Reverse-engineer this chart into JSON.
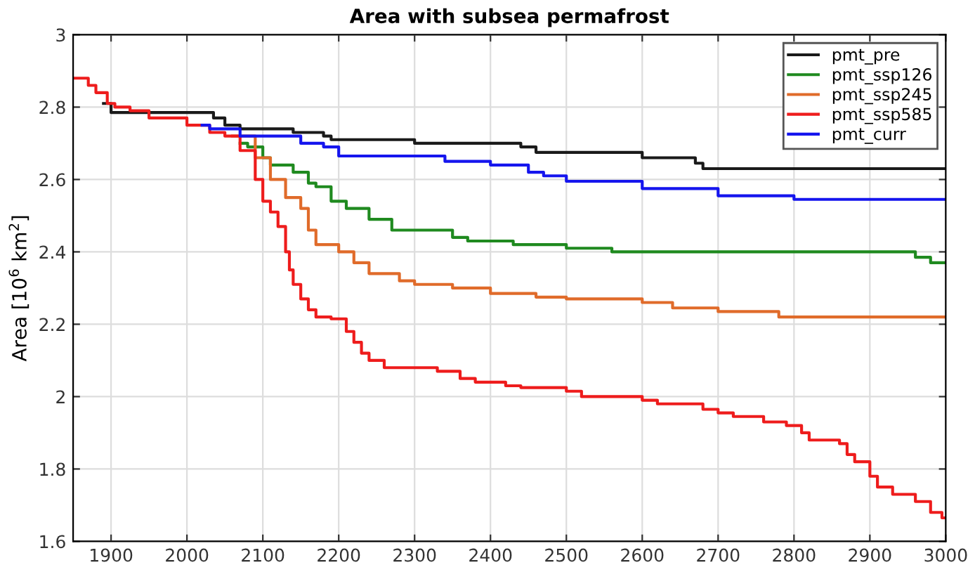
{
  "chart_data": {
    "type": "step",
    "title": "Area with subsea permafrost",
    "ylabel": "Area [10$^{6}$ km$^{2}$]",
    "xlim": [
      1850,
      3000
    ],
    "xticks": [
      1900,
      2000,
      2100,
      2200,
      2300,
      2400,
      2500,
      2600,
      2700,
      2800,
      2900,
      3000
    ],
    "ylim": [
      1.6,
      3
    ],
    "yticks": [
      1.6,
      1.8,
      2,
      2.2,
      2.4,
      2.6,
      2.8,
      3
    ],
    "grid": true,
    "legend": "top right",
    "series": [
      {
        "name": "pmt_pre",
        "color": "#1a1a1a",
        "x": [
          1890,
          1900,
          2035,
          2050,
          2070,
          2140,
          2180,
          2190,
          2300,
          2440,
          2460,
          2600,
          2670,
          2680,
          3000
        ],
        "values": [
          2.81,
          2.785,
          2.77,
          2.75,
          2.74,
          2.73,
          2.72,
          2.71,
          2.7,
          2.69,
          2.675,
          2.66,
          2.645,
          2.63,
          2.63
        ]
      },
      {
        "name": "pmt_ssp126",
        "color": "#1f8a1f",
        "x": [
          2070,
          2080,
          2100,
          2110,
          2140,
          2160,
          2170,
          2190,
          2210,
          2240,
          2270,
          2350,
          2370,
          2430,
          2500,
          2560,
          2960,
          2980,
          3000
        ],
        "values": [
          2.7,
          2.69,
          2.66,
          2.64,
          2.62,
          2.59,
          2.58,
          2.54,
          2.52,
          2.49,
          2.46,
          2.44,
          2.43,
          2.42,
          2.41,
          2.4,
          2.385,
          2.37,
          2.37
        ]
      },
      {
        "name": "pmt_ssp245",
        "color": "#e06b2a",
        "x": [
          2060,
          2090,
          2110,
          2130,
          2150,
          2160,
          2170,
          2200,
          2220,
          2240,
          2280,
          2300,
          2350,
          2400,
          2460,
          2500,
          2600,
          2640,
          2700,
          2780,
          3000
        ],
        "values": [
          2.72,
          2.66,
          2.6,
          2.55,
          2.52,
          2.46,
          2.42,
          2.4,
          2.37,
          2.34,
          2.32,
          2.31,
          2.3,
          2.285,
          2.275,
          2.27,
          2.26,
          2.245,
          2.235,
          2.22,
          2.22
        ]
      },
      {
        "name": "pmt_ssp585",
        "color": "#ee1c1c",
        "x": [
          1850,
          1870,
          1880,
          1895,
          1905,
          1925,
          1950,
          2000,
          2030,
          2050,
          2070,
          2090,
          2100,
          2110,
          2120,
          2130,
          2135,
          2140,
          2150,
          2160,
          2170,
          2190,
          2210,
          2220,
          2230,
          2240,
          2260,
          2330,
          2360,
          2380,
          2420,
          2440,
          2500,
          2520,
          2600,
          2620,
          2680,
          2700,
          2720,
          2760,
          2790,
          2810,
          2820,
          2860,
          2870,
          2880,
          2900,
          2910,
          2930,
          2960,
          2980,
          2995,
          3000
        ],
        "values": [
          2.88,
          2.86,
          2.84,
          2.81,
          2.8,
          2.79,
          2.77,
          2.75,
          2.73,
          2.72,
          2.68,
          2.6,
          2.54,
          2.51,
          2.47,
          2.4,
          2.35,
          2.31,
          2.27,
          2.24,
          2.22,
          2.215,
          2.18,
          2.15,
          2.12,
          2.1,
          2.08,
          2.07,
          2.05,
          2.04,
          2.03,
          2.025,
          2.015,
          2.0,
          1.99,
          1.98,
          1.965,
          1.955,
          1.945,
          1.93,
          1.92,
          1.9,
          1.88,
          1.87,
          1.84,
          1.82,
          1.78,
          1.75,
          1.73,
          1.71,
          1.68,
          1.665,
          1.665
        ]
      },
      {
        "name": "pmt_curr",
        "color": "#1515ee",
        "x": [
          2020,
          2030,
          2070,
          2150,
          2180,
          2200,
          2340,
          2400,
          2450,
          2470,
          2500,
          2600,
          2700,
          2800,
          3000
        ],
        "values": [
          2.75,
          2.74,
          2.72,
          2.7,
          2.69,
          2.665,
          2.65,
          2.64,
          2.62,
          2.61,
          2.595,
          2.575,
          2.555,
          2.545,
          2.545
        ]
      }
    ]
  }
}
